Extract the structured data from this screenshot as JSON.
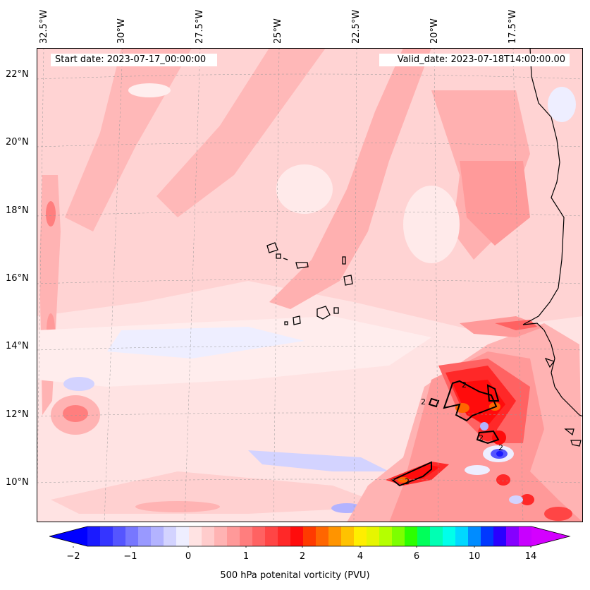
{
  "header": {
    "start_date": "Start date: 2023-07-17_00:00:00",
    "valid_date": "Valid_date: 2023-07-18T14:00:00.00"
  },
  "map": {
    "lon_labels": [
      "32.5°W",
      "30°W",
      "27.5°W",
      "25°W",
      "22.5°W",
      "20°W",
      "17.5°W"
    ],
    "lat_labels": [
      "22°N",
      "20°N",
      "18°N",
      "16°N",
      "14°N",
      "12°N",
      "10°N"
    ],
    "contour_label": "2",
    "contour_level": 2,
    "gridlines": true
  },
  "colorbar": {
    "title": "500 hPa potenital vorticity (PVU)",
    "ticks": [
      "−2",
      "−1",
      "0",
      "1",
      "2",
      "4",
      "6",
      "10",
      "14"
    ],
    "colors": [
      "#1a1aff",
      "#3535ff",
      "#5555ff",
      "#7777ff",
      "#9999ff",
      "#b3b3ff",
      "#d3d3ff",
      "#eeeeff",
      "#ffe3e3",
      "#ffcccc",
      "#ffb3b3",
      "#ff9999",
      "#ff7e7e",
      "#ff6262",
      "#ff4545",
      "#ff2828",
      "#ff0c0c",
      "#ff3a00",
      "#ff6600",
      "#ff9400",
      "#ffc200",
      "#ffee00",
      "#e6f500",
      "#b5ff00",
      "#7dff00",
      "#2cff00",
      "#00ff5a",
      "#00ffb3",
      "#00ffea",
      "#00d8ff",
      "#008cff",
      "#0038ff",
      "#2a00ff",
      "#8500ff",
      "#c800ff"
    ],
    "under_color": "#0000ff",
    "over_color": "#d400ff"
  }
}
